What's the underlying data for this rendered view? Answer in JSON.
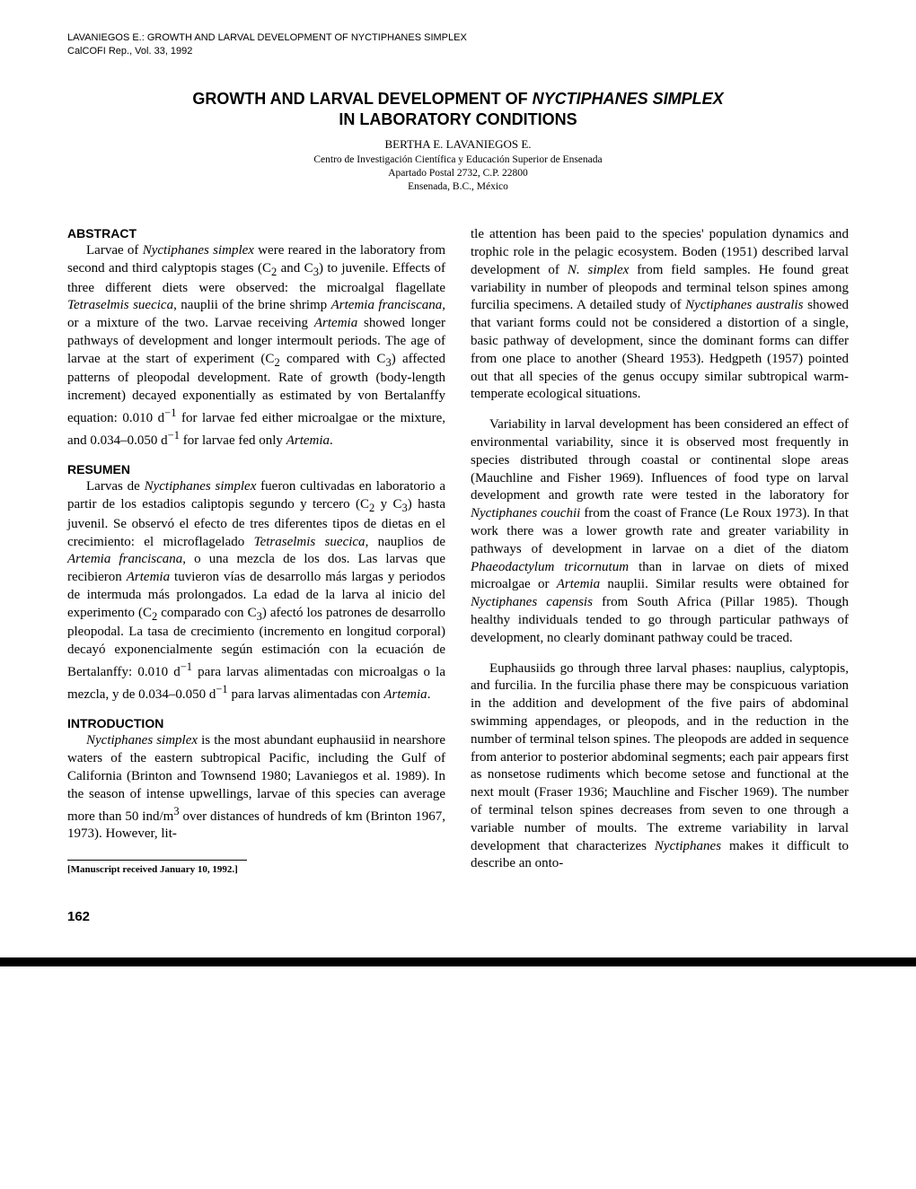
{
  "runningHead": {
    "line1": "LAVANIEGOS E.: GROWTH AND LARVAL DEVELOPMENT OF NYCTIPHANES SIMPLEX",
    "line2": "CalCOFI Rep., Vol. 33, 1992"
  },
  "titleBlock": {
    "title_pre": "GROWTH AND LARVAL DEVELOPMENT OF ",
    "title_ital": "NYCTIPHANES SIMPLEX",
    "title_post_line2": "IN LABORATORY CONDITIONS",
    "author": "BERTHA E. LAVANIEGOS E.",
    "affil1": "Centro de Investigación Científica y Educación Superior de Ensenada",
    "affil2": "Apartado Postal 2732, C.P. 22800",
    "affil3": "Ensenada, B.C., México"
  },
  "left": {
    "abstract_head": "ABSTRACT",
    "abstract_html": "Larvae of <span class=\"ital\">Nyctiphanes simplex</span> were reared in the laboratory from second and third calyptopis stages (C<sub>2</sub> and C<sub>3</sub>) to juvenile. Effects of three different diets were observed: the microalgal flagellate <span class=\"ital\">Tetraselmis suecica</span>, nauplii of the brine shrimp <span class=\"ital\">Artemia franciscana</span>, or a mixture of the two. Larvae receiving <span class=\"ital\">Artemia</span> showed longer pathways of development and longer intermoult periods. The age of larvae at the start of experiment (C<sub>2</sub> compared with C<sub>3</sub>) affected patterns of pleopodal development. Rate of growth (body-length increment) decayed exponentially as estimated by von Bertalanffy equation: 0.010 d<sup>−1</sup> for larvae fed either microalgae or the mixture, and 0.034–0.050 d<sup>−1</sup> for larvae fed only <span class=\"ital\">Artemia</span>.",
    "resumen_head": "RESUMEN",
    "resumen_html": "Larvas de <span class=\"ital\">Nyctiphanes simplex</span> fueron cultivadas en laboratorio a partir de los estadios caliptopis segundo y tercero (C<sub>2</sub> y C<sub>3</sub>) hasta juvenil. Se observó el efecto de tres diferentes tipos de dietas en el crecimiento: el microflagelado <span class=\"ital\">Tetraselmis suecica</span>, nauplios de <span class=\"ital\">Artemia franciscana</span>, o una mezcla de los dos. Las larvas que recibieron <span class=\"ital\">Artemia</span> tuvieron vías de desarrollo más largas y periodos de intermuda más prolongados. La edad de la larva al inicio del experimento (C<sub>2</sub> comparado con C<sub>3</sub>) afectó los patrones de desarrollo pleopodal. La tasa de crecimiento (incremento en longitud corporal) decayó exponencialmente según estimación con la ecuación de Bertalanffy: 0.010 d<sup>−1</sup> para larvas alimentadas con microalgas o la mezcla, y de 0.034–0.050 d<sup>−1</sup> para larvas alimentadas con <span class=\"ital\">Artemia</span>.",
    "intro_head": "INTRODUCTION",
    "intro_html": "<span class=\"ital\">Nyctiphanes simplex</span> is the most abundant euphausiid in nearshore waters of the eastern subtropical Pacific, including the Gulf of California (Brinton and Townsend 1980; Lavaniegos et al. 1989). In the season of intense upwellings, larvae of this species can average more than 50 ind/m<sup>3</sup> over distances of hundreds of km (Brinton 1967, 1973). However, lit-",
    "footnote": "[Manuscript received January 10, 1992.]"
  },
  "right": {
    "p1_html": "tle attention has been paid to the species' population dynamics and trophic role in the pelagic ecosystem. Boden (1951) described larval development of <span class=\"ital\">N. simplex</span> from field samples. He found great variability in number of pleopods and terminal telson spines among furcilia specimens. A detailed study of <span class=\"ital\">Nyctiphanes australis</span> showed that variant forms could not be considered a distortion of a single, basic pathway of development, since the dominant forms can differ from one place to another (Sheard 1953). Hedgpeth (1957) pointed out that all species of the genus occupy similar subtropical warm-temperate ecological situations.",
    "p2_html": "Variability in larval development has been considered an effect of environmental variability, since it is observed most frequently in species distributed through coastal or continental slope areas (Mauchline and Fisher 1969). Influences of food type on larval development and growth rate were tested in the laboratory for <span class=\"ital\">Nyctiphanes couchii</span> from the coast of France (Le Roux 1973). In that work there was a lower growth rate and greater variability in pathways of development in larvae on a diet of the diatom <span class=\"ital\">Phaeodactylum tricornutum</span> than in larvae on diets of mixed microalgae or <span class=\"ital\">Artemia</span> nauplii. Similar results were obtained for <span class=\"ital\">Nyctiphanes capensis</span> from South Africa (Pillar 1985). Though healthy individuals tended to go through particular pathways of development, no clearly dominant pathway could be traced.",
    "p3_html": "Euphausiids go through three larval phases: nauplius, calyptopis, and furcilia. In the furcilia phase there may be conspicuous variation in the addition and development of the five pairs of abdominal swimming appendages, or pleopods, and in the reduction in the number of terminal telson spines. The pleopods are added in sequence from anterior to posterior abdominal segments; each pair appears first as nonsetose rudiments which become setose and functional at the next moult (Fraser 1936; Mauchline and Fischer 1969). The number of terminal telson spines decreases from seven to one through a variable number of moults. The extreme variability in larval development that characterizes <span class=\"ital\">Nyctiphanes</span> makes it difficult to describe an onto-"
  },
  "pageNumber": "162"
}
